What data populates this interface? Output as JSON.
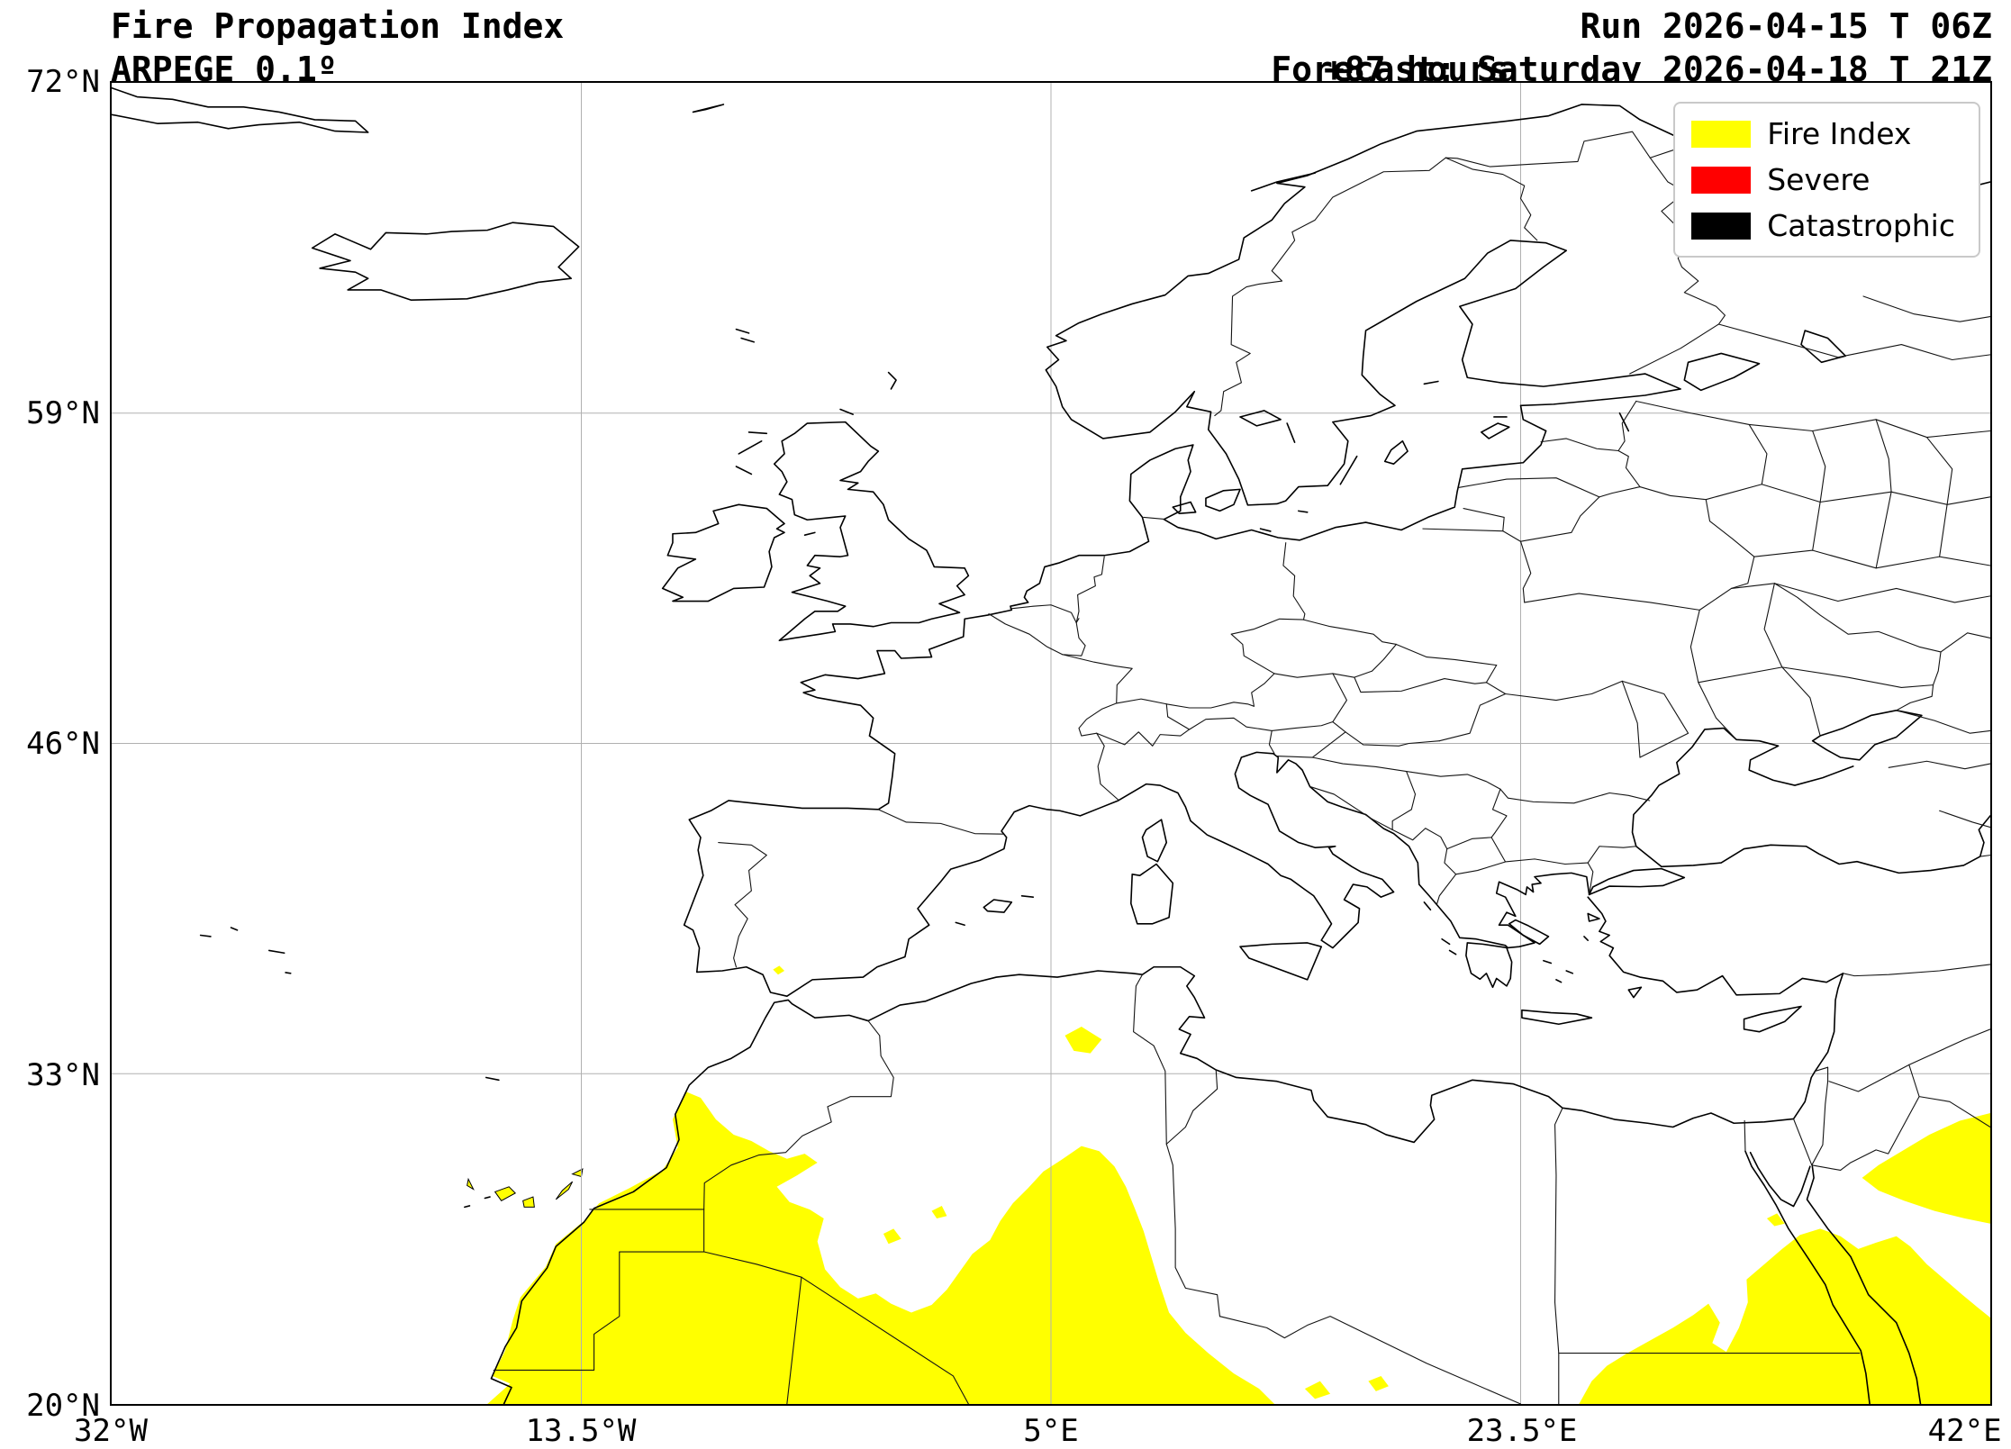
{
  "header": {
    "title": "Fire Propagation Index",
    "model": "ARPEGE 0.1º",
    "lead_time": "+87 hours",
    "run": "Run 2026-04-15 T 06Z",
    "forecast": "Forecast: Saturday 2026-04-18 T 21Z"
  },
  "legend": {
    "items": [
      {
        "label": "Fire Index",
        "color": "#ffff00"
      },
      {
        "label": "Severe",
        "color": "#ff0000"
      },
      {
        "label": "Catastrophic",
        "color": "#000000"
      }
    ]
  },
  "map": {
    "x_ticks": [
      "32°W",
      "13.5°W",
      "5°E",
      "23.5°E",
      "42°E"
    ],
    "y_ticks": [
      "72°N",
      "59°N",
      "46°N",
      "33°N",
      "20°N"
    ],
    "lon_min": -32,
    "lon_max": 42,
    "lat_min": 20,
    "lat_max": 72,
    "grid_color": "#b0b0b0",
    "coast_color": "#000000",
    "fire_index_color": "#ffff00"
  }
}
